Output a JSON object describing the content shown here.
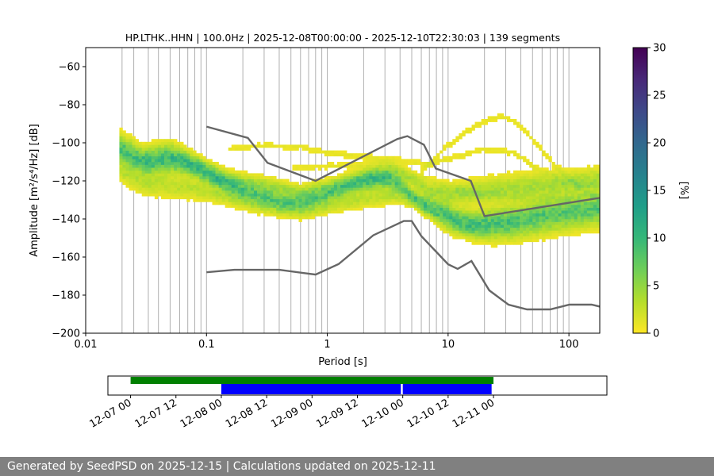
{
  "chart_data": [
    {
      "type": "heatmap",
      "subtype": "probabilistic-power-spectral-density",
      "title": "HP.LTHK..HHN | 100.0Hz | 2025-12-08T00:00:00 - 2025-12-10T22:30:03 | 139 segments",
      "xlabel": "Period [s]",
      "ylabel": "Amplitude [m²/s⁴/Hz] [dB]",
      "x_scale": "log",
      "xlim": [
        0.01,
        180
      ],
      "ylim": [
        -200,
        -50
      ],
      "x_ticks": [
        {
          "value": 0.01,
          "label": "0.01"
        },
        {
          "value": 0.1,
          "label": "0.1"
        },
        {
          "value": 1,
          "label": "1"
        },
        {
          "value": 10,
          "label": "10"
        },
        {
          "value": 100,
          "label": "100"
        }
      ],
      "y_ticks": [
        {
          "value": -60,
          "label": "−60"
        },
        {
          "value": -80,
          "label": "−80"
        },
        {
          "value": -100,
          "label": "−100"
        },
        {
          "value": -120,
          "label": "−120"
        },
        {
          "value": -140,
          "label": "−140"
        },
        {
          "value": -160,
          "label": "−160"
        },
        {
          "value": -180,
          "label": "−180"
        },
        {
          "value": -200,
          "label": "−200"
        }
      ],
      "grid_periods": [
        0.02,
        0.025,
        0.033,
        0.04,
        0.05,
        0.06,
        0.07,
        0.08,
        0.09,
        0.1,
        0.2,
        0.3,
        0.4,
        0.5,
        0.6,
        0.7,
        0.8,
        0.9,
        1,
        2,
        3,
        4,
        5,
        6,
        7,
        8,
        9,
        10,
        20,
        30,
        40,
        50,
        60,
        70,
        80,
        90,
        100
      ],
      "colorbar": {
        "label": "[%]",
        "min": 0,
        "max": 30,
        "ticks": [
          {
            "value": 0,
            "label": "0"
          },
          {
            "value": 5,
            "label": "5"
          },
          {
            "value": 10,
            "label": "10"
          },
          {
            "value": 15,
            "label": "15"
          },
          {
            "value": 20,
            "label": "20"
          },
          {
            "value": 25,
            "label": "25"
          },
          {
            "value": 30,
            "label": "30"
          }
        ],
        "colormap": [
          "#440154",
          "#482878",
          "#3e4989",
          "#31688e",
          "#26828e",
          "#1f9e89",
          "#35b779",
          "#6ece58",
          "#b5de2b",
          "#fde725"
        ]
      },
      "noise_models": [
        {
          "name": "NHNM",
          "color": "#666666",
          "points": [
            [
              0.1,
              -91.5
            ],
            [
              0.22,
              -97.4
            ],
            [
              0.32,
              -110.5
            ],
            [
              0.8,
              -120
            ],
            [
              3.8,
              -98
            ],
            [
              4.6,
              -96.5
            ],
            [
              6.3,
              -101
            ],
            [
              7.9,
              -113.5
            ],
            [
              15.4,
              -120
            ],
            [
              20,
              -138.5
            ],
            [
              354,
              -126
            ]
          ]
        },
        {
          "name": "NLNM",
          "color": "#666666",
          "points": [
            [
              0.1,
              -168
            ],
            [
              0.17,
              -166.7
            ],
            [
              0.4,
              -166.7
            ],
            [
              0.8,
              -169.2
            ],
            [
              1.24,
              -163.7
            ],
            [
              2.4,
              -148.6
            ],
            [
              4.3,
              -141.1
            ],
            [
              5,
              -141.1
            ],
            [
              6,
              -149
            ],
            [
              10,
              -163.8
            ],
            [
              12,
              -166.2
            ],
            [
              15.6,
              -162.1
            ],
            [
              21.9,
              -177.5
            ],
            [
              31.6,
              -185
            ],
            [
              45,
              -187.5
            ],
            [
              70,
              -187.5
            ],
            [
              101,
              -185
            ],
            [
              154,
              -185
            ],
            [
              180,
              -186
            ]
          ]
        }
      ],
      "density_bands": [
        {
          "name": "main-trend",
          "intensity": 7,
          "points": [
            [
              0.019,
              -105
            ],
            [
              0.025,
              -110
            ],
            [
              0.033,
              -112
            ],
            [
              0.05,
              -110
            ],
            [
              0.07,
              -112
            ],
            [
              0.1,
              -117
            ],
            [
              0.15,
              -123
            ],
            [
              0.2,
              -126
            ],
            [
              0.3,
              -129
            ],
            [
              0.45,
              -132
            ],
            [
              0.6,
              -132
            ],
            [
              0.8,
              -130
            ],
            [
              1.2,
              -126
            ],
            [
              1.8,
              -122
            ],
            [
              2.5,
              -120
            ],
            [
              3.2,
              -120
            ],
            [
              4,
              -123
            ],
            [
              5,
              -128
            ],
            [
              6,
              -132
            ],
            [
              7.5,
              -135
            ],
            [
              9,
              -137
            ],
            [
              12,
              -141
            ],
            [
              16,
              -143
            ],
            [
              25,
              -142
            ],
            [
              40,
              -140
            ],
            [
              70,
              -137
            ],
            [
              180,
              -134
            ]
          ]
        },
        {
          "name": "upper-trend",
          "intensity": 4,
          "points": [
            [
              0.019,
              -100
            ],
            [
              0.03,
              -108
            ],
            [
              0.05,
              -106
            ],
            [
              0.08,
              -112
            ],
            [
              0.15,
              -120
            ],
            [
              0.3,
              -123
            ],
            [
              0.6,
              -127
            ],
            [
              1,
              -124
            ],
            [
              2,
              -119
            ],
            [
              3.5,
              -116
            ],
            [
              5,
              -120
            ],
            [
              7,
              -126
            ],
            [
              10,
              -128
            ],
            [
              20,
              -126
            ],
            [
              40,
              -124
            ],
            [
              80,
              -123
            ],
            [
              180,
              -120
            ]
          ]
        },
        {
          "name": "lower-trend",
          "intensity": 3,
          "points": [
            [
              0.019,
              -115
            ],
            [
              0.03,
              -122
            ],
            [
              0.05,
              -123
            ],
            [
              0.08,
              -125
            ],
            [
              0.15,
              -129
            ],
            [
              0.3,
              -134
            ],
            [
              0.6,
              -137
            ],
            [
              1,
              -134
            ],
            [
              2,
              -130
            ],
            [
              3.5,
              -128
            ],
            [
              5,
              -131
            ],
            [
              7,
              -136
            ],
            [
              10,
              -143
            ],
            [
              20,
              -147
            ],
            [
              40,
              -146
            ],
            [
              80,
              -143
            ],
            [
              180,
              -140
            ]
          ]
        },
        {
          "name": "sparse-arch",
          "intensity": 1,
          "points": [
            [
              6,
              -116
            ],
            [
              10,
              -102
            ],
            [
              15,
              -94
            ],
            [
              22,
              -88
            ],
            [
              30,
              -87
            ],
            [
              40,
              -92
            ],
            [
              55,
              -102
            ],
            [
              80,
              -114
            ],
            [
              120,
              -124
            ],
            [
              180,
              -130
            ]
          ]
        },
        {
          "name": "sparse-mid",
          "intensity": 1,
          "points": [
            [
              0.15,
              -104
            ],
            [
              0.3,
              -102
            ],
            [
              0.6,
              -103
            ],
            [
              1,
              -106
            ],
            [
              2,
              -108
            ],
            [
              4,
              -110
            ],
            [
              7,
              -112
            ],
            [
              12,
              -108
            ],
            [
              20,
              -104
            ],
            [
              35,
              -106
            ],
            [
              60,
              -116
            ],
            [
              100,
              -122
            ],
            [
              180,
              -124
            ]
          ]
        },
        {
          "name": "sparse-low",
          "intensity": 1,
          "points": [
            [
              0.5,
              -114
            ],
            [
              1,
              -113
            ],
            [
              3,
              -112
            ],
            [
              7,
              -120
            ],
            [
              12,
              -125
            ],
            [
              20,
              -128
            ],
            [
              40,
              -130
            ],
            [
              80,
              -130
            ],
            [
              180,
              -128
            ]
          ]
        }
      ],
      "spread": [
        [
          0.019,
          8
        ],
        [
          0.05,
          9
        ],
        [
          0.1,
          7
        ],
        [
          0.5,
          6
        ],
        [
          1,
          6
        ],
        [
          3,
          7
        ],
        [
          5,
          5
        ],
        [
          10,
          8
        ],
        [
          30,
          10
        ],
        [
          180,
          9
        ]
      ]
    },
    {
      "type": "timeline",
      "xlim_hours": [
        -6,
        126
      ],
      "tick_labels": [
        {
          "hours": 0,
          "label": "12-07 00"
        },
        {
          "hours": 12,
          "label": "12-07 12"
        },
        {
          "hours": 24,
          "label": "12-08 00"
        },
        {
          "hours": 36,
          "label": "12-08 12"
        },
        {
          "hours": 48,
          "label": "12-09 00"
        },
        {
          "hours": 60,
          "label": "12-09 12"
        },
        {
          "hours": 72,
          "label": "12-10 00"
        },
        {
          "hours": 84,
          "label": "12-10 12"
        },
        {
          "hours": 96,
          "label": "12-11 00"
        }
      ],
      "bars": [
        {
          "name": "available-data",
          "row": "upper",
          "color": "#008000",
          "start": 0,
          "end": 96
        },
        {
          "name": "used-segments-1",
          "row": "lower",
          "color": "#0000ff",
          "start": 24,
          "end": 71.5
        },
        {
          "name": "used-segments-2",
          "row": "lower",
          "color": "#0000ff",
          "start": 72,
          "end": 95.5
        }
      ]
    }
  ],
  "footer": {
    "text": "Generated by SeedPSD on 2025-12-15 | Calculations updated on 2025-12-11"
  }
}
